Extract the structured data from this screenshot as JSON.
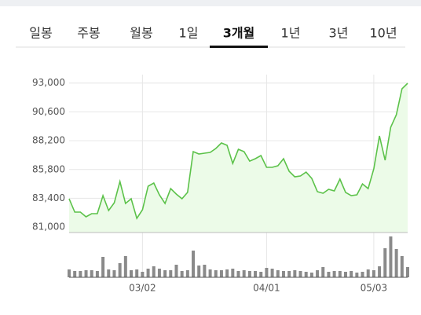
{
  "tabs": {
    "items": [
      "일봉",
      "주봉",
      "월봉",
      "1일",
      "3개월",
      "1년",
      "3년",
      "10년"
    ],
    "active": 4
  },
  "chart_data": [
    {
      "type": "line",
      "color": "#5cc24a",
      "fill": "#ecfbe8",
      "categories": [
        null,
        null,
        null,
        null,
        null,
        null,
        null,
        null,
        null,
        null,
        null,
        null,
        null,
        "03/02",
        null,
        null,
        null,
        null,
        null,
        null,
        null,
        null,
        null,
        null,
        null,
        null,
        null,
        null,
        null,
        null,
        null,
        null,
        null,
        null,
        null,
        "04/01",
        null,
        null,
        null,
        null,
        null,
        null,
        null,
        null,
        null,
        null,
        null,
        null,
        null,
        null,
        null,
        null,
        null,
        null,
        "05/03",
        null,
        null,
        null,
        null,
        null,
        null
      ],
      "values": [
        83360,
        82250,
        82250,
        81860,
        82120,
        82120,
        83620,
        82380,
        83030,
        84800,
        82970,
        83360,
        81730,
        82450,
        84410,
        84670,
        83690,
        82970,
        84210,
        83750,
        83360,
        83890,
        87290,
        87090,
        87160,
        87220,
        87550,
        88010,
        87810,
        86300,
        87480,
        87290,
        86500,
        86700,
        86960,
        85980,
        85980,
        86110,
        86700,
        85650,
        85190,
        85260,
        85580,
        85060,
        83950,
        83820,
        84150,
        84020,
        85000,
        83890,
        83620,
        83690,
        84600,
        84210,
        85850,
        88600,
        86570,
        89310,
        90360,
        92520,
        92980
      ],
      "ylim": [
        80550,
        93700
      ],
      "yticks": [
        {
          "value": 81000,
          "label": "81,000"
        },
        {
          "value": 83400,
          "label": "83,400"
        },
        {
          "value": 85800,
          "label": "85,800"
        },
        {
          "value": 88200,
          "label": "88,200"
        },
        {
          "value": 90600,
          "label": "90,600"
        },
        {
          "value": 93000,
          "label": "93,000"
        }
      ],
      "grid": true
    },
    {
      "type": "bar",
      "color": "#8a8a8a",
      "values": [
        10,
        8,
        8,
        9,
        9,
        8,
        26,
        10,
        9,
        18,
        27,
        9,
        10,
        7,
        11,
        14,
        11,
        9,
        9,
        16,
        8,
        9,
        34,
        15,
        16,
        10,
        9,
        9,
        10,
        11,
        8,
        9,
        8,
        8,
        7,
        12,
        11,
        9,
        8,
        8,
        9,
        8,
        7,
        6,
        9,
        13,
        7,
        8,
        8,
        7,
        8,
        6,
        7,
        10,
        9,
        14,
        37,
        52,
        36,
        27,
        13
      ],
      "ylim": [
        0,
        55
      ]
    }
  ]
}
